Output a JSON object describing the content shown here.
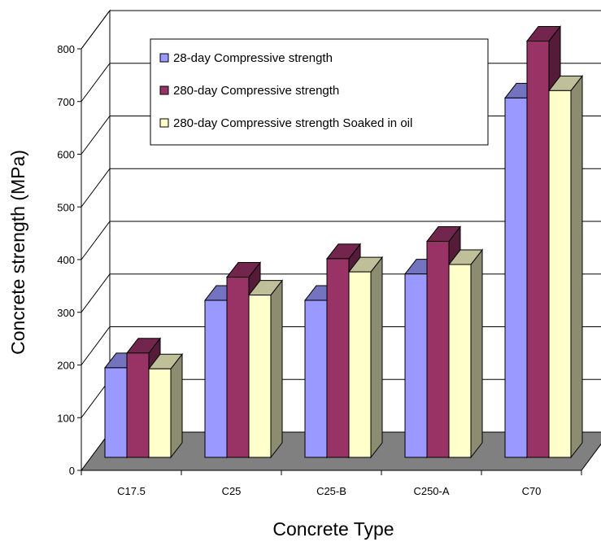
{
  "chart_data": {
    "type": "bar",
    "title": "",
    "xlabel": "Concrete Type",
    "ylabel": "Concrete strength (MPa)",
    "ylim": [
      0,
      800
    ],
    "yticks": [
      "0",
      "100",
      "200",
      "300",
      "400",
      "500",
      "600",
      "700",
      "800"
    ],
    "categories": [
      "C17.5",
      "C25",
      "C25-B",
      "C250-A",
      "C70"
    ],
    "series": [
      {
        "name": "28-day Compressive strength",
        "values": [
          170,
          298,
          298,
          348,
          682
        ],
        "color": "#9999ff"
      },
      {
        "name": "280-day Compressive strength",
        "values": [
          198,
          342,
          377,
          410,
          790
        ],
        "color": "#993366"
      },
      {
        "name": "280-day Compressive strength Soaked in oil",
        "values": [
          168,
          308,
          352,
          366,
          696
        ],
        "color": "#ffffcc"
      }
    ],
    "grid": true,
    "legend_position": "top"
  }
}
